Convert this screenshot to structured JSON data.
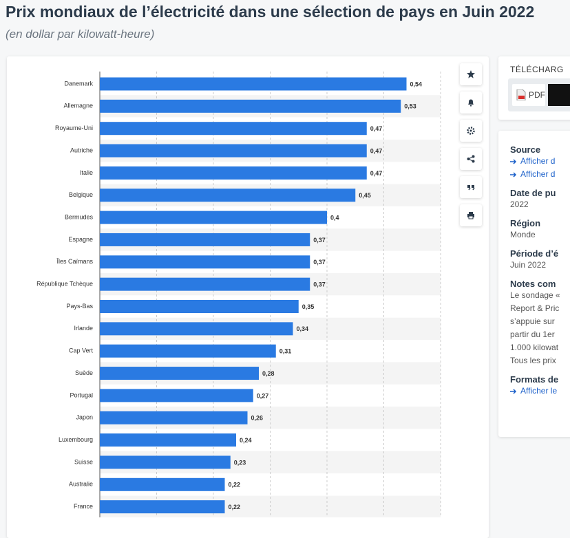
{
  "header": {
    "title": "Prix mondiaux de l’électricité dans une sélection de pays en Juin 2022",
    "subtitle": "(en dollar par kilowatt-heure)"
  },
  "chart_data": {
    "type": "bar",
    "orientation": "horizontal",
    "categories": [
      "Danemark",
      "Allemagne",
      "Royaume-Uni",
      "Autriche",
      "Italie",
      "Belgique",
      "Bermudes",
      "Espagne",
      "Îles Caïmans",
      "République Tchèque",
      "Pays-Bas",
      "Irlande",
      "Cap Vert",
      "Suède",
      "Portugal",
      "Japon",
      "Luxembourg",
      "Suisse",
      "Australie",
      "France"
    ],
    "values": [
      0.54,
      0.53,
      0.47,
      0.47,
      0.47,
      0.45,
      0.4,
      0.37,
      0.37,
      0.37,
      0.35,
      0.34,
      0.31,
      0.28,
      0.27,
      0.26,
      0.24,
      0.23,
      0.22,
      0.22
    ],
    "value_labels": [
      "0,54",
      "0,53",
      "0,47",
      "0,47",
      "0,47",
      "0,45",
      "0,4",
      "0,37",
      "0,37",
      "0,37",
      "0,35",
      "0,34",
      "0,31",
      "0,28",
      "0,27",
      "0,26",
      "0,24",
      "0,23",
      "0,22",
      "0,22"
    ],
    "color": "#2a7ae2",
    "xlim": [
      0,
      0.6
    ],
    "xticks": [
      0,
      0.1,
      0.2,
      0.3,
      0.4,
      0.5,
      0.6
    ],
    "grid": true
  },
  "sidebar": {
    "download_title": "TÉLÉCHARG",
    "pdf": "PDF",
    "sections": [
      {
        "heading": "Source",
        "links": [
          "Afficher d",
          "Afficher d"
        ]
      },
      {
        "heading": "Date de pu",
        "lines": [
          "2022"
        ]
      },
      {
        "heading": "Région",
        "lines": [
          "Monde"
        ]
      },
      {
        "heading": "Période d’é",
        "lines": [
          "Juin 2022"
        ]
      },
      {
        "heading": "Notes com",
        "lines": [
          "Le sondage «",
          "Report & Pric",
          "s’appuie sur",
          "partir du 1er",
          "1.000 kilowat",
          "Tous les prix"
        ]
      },
      {
        "heading": "Formats de",
        "links": [
          "Afficher le"
        ]
      }
    ]
  }
}
